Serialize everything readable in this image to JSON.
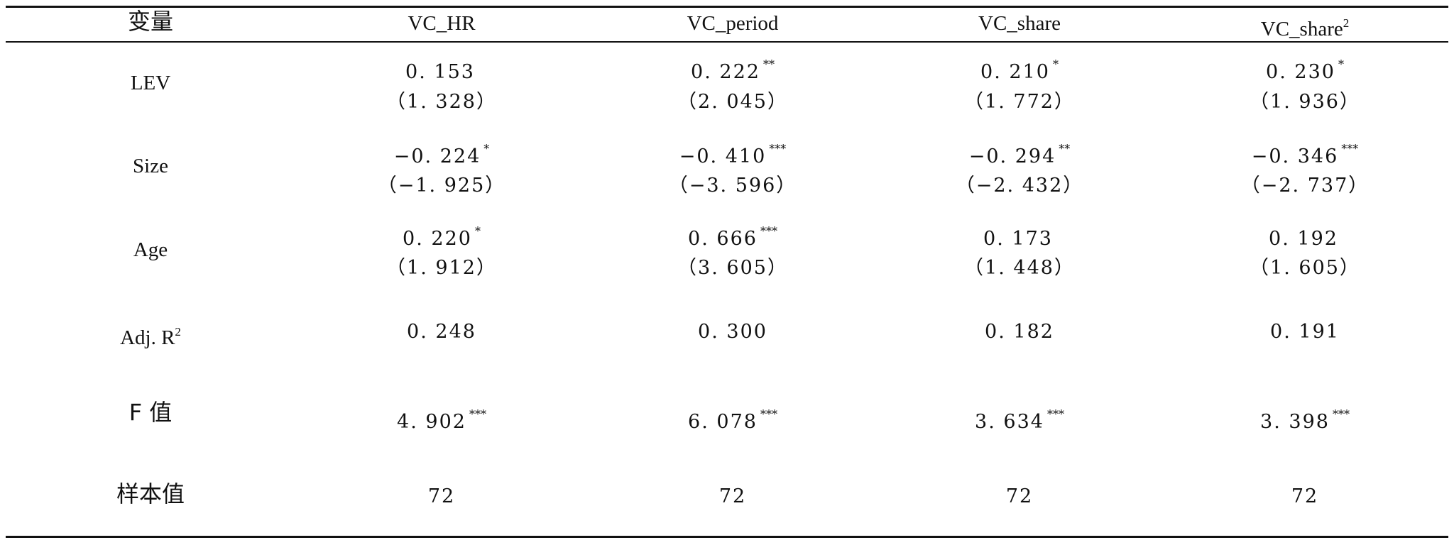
{
  "table": {
    "headers": [
      "变量",
      "VC_HR",
      "VC_period",
      "VC_share",
      "VC_share"
    ],
    "header_superscript": "2",
    "rows": [
      {
        "label": "LEV",
        "coef": [
          "0. 153",
          "0. 222",
          "0. 210",
          "0. 230"
        ],
        "stars": [
          "",
          "**",
          "*",
          "*"
        ],
        "t": [
          "（1. 328）",
          "（2. 045）",
          "（1. 772）",
          "（1. 936）"
        ]
      },
      {
        "label": "Size",
        "coef": [
          "−0. 224",
          "−0. 410",
          "−0. 294",
          "−0. 346"
        ],
        "stars": [
          "*",
          "***",
          "**",
          "***"
        ],
        "t": [
          "（−1. 925）",
          "（−3. 596）",
          "（−2. 432）",
          "（−2. 737）"
        ]
      },
      {
        "label": "Age",
        "coef": [
          "0. 220",
          "0. 666",
          "0. 173",
          "0. 192"
        ],
        "stars": [
          "*",
          "***",
          "",
          ""
        ],
        "t": [
          "（1. 912）",
          "（3. 605）",
          "（1. 448）",
          "（1. 605）"
        ]
      }
    ],
    "adj_r2": {
      "label": "Adj. R",
      "superscript": "2",
      "values": [
        "0. 248",
        "0. 300",
        "0. 182",
        "0. 191"
      ]
    },
    "f_value": {
      "label": "F 值",
      "values": [
        "4. 902",
        "6. 078",
        "3. 634",
        "3. 398"
      ],
      "stars": [
        "***",
        "***",
        "***",
        "***"
      ]
    },
    "sample": {
      "label": "样本值",
      "values": [
        "72",
        "72",
        "72",
        "72"
      ]
    }
  }
}
